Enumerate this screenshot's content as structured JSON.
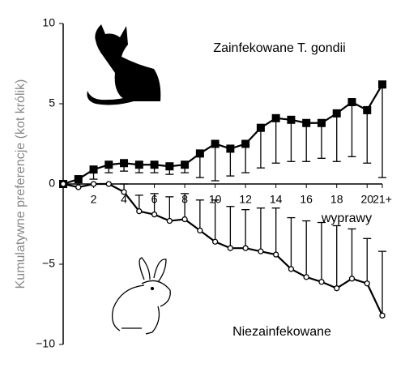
{
  "chart_data": {
    "type": "line",
    "y_label": "Kumulatywne preferencje (kot królik)",
    "x_label": "wyprawy",
    "x": [
      0,
      1,
      2,
      3,
      4,
      5,
      6,
      7,
      8,
      9,
      10,
      11,
      12,
      13,
      14,
      15,
      16,
      17,
      18,
      19,
      20,
      21
    ],
    "xlim": [
      0,
      21
    ],
    "xticks": [
      2,
      4,
      6,
      8,
      10,
      12,
      14,
      16,
      18,
      20,
      {
        "value": 21,
        "label": "21+"
      }
    ],
    "ylim": [
      -10,
      10
    ],
    "yticks": [
      {
        "value": -10,
        "label": "−10"
      },
      {
        "value": -5,
        "label": "−5"
      },
      0,
      5,
      10
    ],
    "series": [
      {
        "name": "Zainfekowane T. gondii",
        "color": "#000000",
        "marker": "filled-square",
        "error_direction": "down",
        "values": [
          0,
          0.3,
          0.9,
          1.2,
          1.3,
          1.2,
          1.2,
          1.1,
          1.2,
          1.9,
          2.5,
          2.2,
          2.5,
          3.5,
          4.1,
          4.0,
          3.8,
          3.8,
          4.4,
          5.1,
          4.6,
          6.2
        ],
        "errors": [
          0,
          0.3,
          0.6,
          0.5,
          0.5,
          0.5,
          0.5,
          0.5,
          0.5,
          1.5,
          2.3,
          1.7,
          1.8,
          2.5,
          2.8,
          2.6,
          2.4,
          2.2,
          3.0,
          3.4,
          3.3,
          5.8
        ]
      },
      {
        "name": "Niezainfekowane",
        "color": "#000000",
        "marker": "open-circle",
        "error_direction": "up",
        "values": [
          0,
          -0.2,
          0,
          0,
          -0.5,
          -1.7,
          -1.9,
          -2.3,
          -2.2,
          -2.9,
          -3.6,
          -4.0,
          -4.0,
          -4.2,
          -4.4,
          -5.3,
          -5.8,
          -6.1,
          -6.5,
          -5.9,
          -6.2,
          -8.2
        ],
        "errors": [
          0,
          0,
          0,
          0,
          0.5,
          1.0,
          1.3,
          1.5,
          1.6,
          1.9,
          2.6,
          2.6,
          2.4,
          2.7,
          2.9,
          3.2,
          3.5,
          3.7,
          3.9,
          3.1,
          2.8,
          4.0
        ]
      }
    ]
  }
}
